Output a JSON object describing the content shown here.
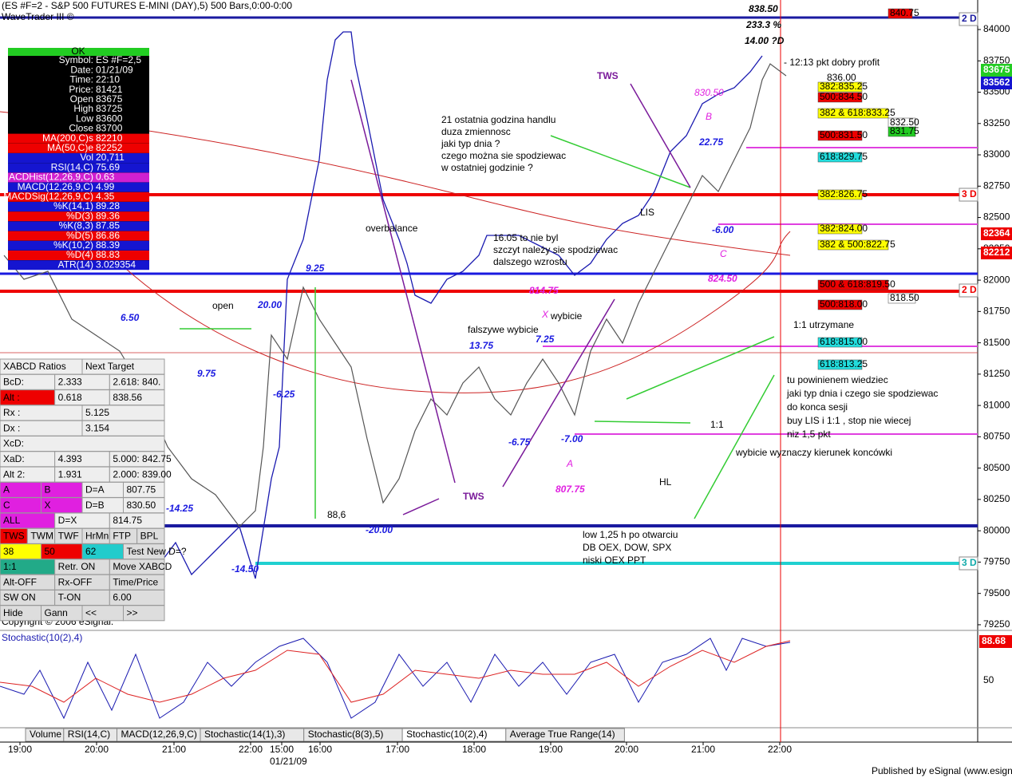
{
  "header": {
    "title": "(ES #F=2 - S&P 500 FUTURES E-MINI (DAY),5) 500 Bars,0:00-0:00",
    "subtitle": "WaveTrader III ©",
    "price_top": "838.50",
    "percent": "233.3 %",
    "target": "14.00 ?D"
  },
  "info_panel": {
    "status": "OK",
    "rows": [
      [
        "Symbol:",
        "ES #F=2,5"
      ],
      [
        "Date:",
        "01/21/09"
      ],
      [
        "Time:",
        "22:10"
      ],
      [
        "Price:",
        "81421"
      ],
      [
        "Open",
        "83675"
      ],
      [
        "High",
        "83725"
      ],
      [
        "Low",
        "83600"
      ],
      [
        "Close",
        "83700"
      ],
      [
        "MA(200,C)s",
        "82210"
      ],
      [
        "MA(50,C)e",
        "82252"
      ],
      [
        "Vol",
        "20,711"
      ],
      [
        "RSI(14,C)",
        "75.69"
      ],
      [
        "MACDHist(12,26,9,C)",
        "0.63"
      ],
      [
        "MACD(12,26,9,C)",
        "4.99"
      ],
      [
        "MACDSig(12,26,9,C)",
        "4.35"
      ],
      [
        "%K(14,1)",
        "89.28"
      ],
      [
        "%D(3)",
        "89.36"
      ],
      [
        "%K(8,3)",
        "87.85"
      ],
      [
        "%D(5)",
        "86.86"
      ],
      [
        "%K(10,2)",
        "88.39"
      ],
      [
        "%D(4)",
        "88.83"
      ],
      [
        "ATR(14)",
        "3.029354"
      ]
    ]
  },
  "xabcd_panel": {
    "rows": [
      [
        "XABCD Ratios",
        "Next Target"
      ],
      [
        "BcD:",
        "2.333",
        "2.618: 840."
      ],
      [
        "Alt :",
        "0.618",
        "838.56"
      ],
      [
        "Rx :",
        "5.125"
      ],
      [
        "Dx :",
        "3.154"
      ],
      [
        "XcD:"
      ],
      [
        "XaD:",
        "4.393",
        "5.000: 842.75"
      ],
      [
        "Alt 2:",
        "1.931",
        "2.000: 839.00"
      ],
      [
        "A",
        "B",
        "D=A",
        "807.75"
      ],
      [
        "C",
        "X",
        "D=B",
        "830.50"
      ],
      [
        "ALL",
        "D=X",
        "814.75"
      ],
      [
        "TWS",
        "TWM",
        "TWF",
        "HrMn",
        "FTP",
        "BPL"
      ],
      [
        "38",
        "50",
        "62",
        "Test New D=?"
      ],
      [
        "1:1",
        "Retr. ON",
        "Move XABCD"
      ],
      [
        "Alt-OFF",
        "Rx-OFF",
        "Time/Price"
      ],
      [
        "SW ON",
        "T-ON",
        "6.00"
      ],
      [
        "Hide",
        "Gann",
        "<<",
        ">>"
      ]
    ]
  },
  "price_axis": [
    84000,
    83750,
    83500,
    83250,
    83000,
    82750,
    82500,
    82250,
    82000,
    81750,
    81500,
    81250,
    81000,
    80750,
    80500,
    80250,
    80000,
    79750,
    79500,
    79250
  ],
  "levels": [
    "840.75",
    "382:835.25",
    "500:834.50",
    "382 & 618:833.25",
    "832.50",
    "831.75",
    "500:831.50",
    "618:829.75",
    "382:826.75",
    "382:824.00",
    "382 & 500:822.75",
    "500 & 618:819.50",
    "818.50",
    "500:818.00",
    "618:815.00",
    "618:813.25",
    "836.00"
  ],
  "right_tags": [
    "2 D",
    "3 D",
    "2 D",
    "3 D",
    "83675",
    "83562",
    "82364",
    "82212"
  ],
  "annotations": [
    "TWS",
    "830.50",
    "B",
    "22.75",
    "LIS",
    "-6.00",
    "C",
    "824.50",
    "- 12:13 pkt dobry profit",
    "overbalance",
    "9.25",
    "814.75",
    "open",
    "20.00",
    "X",
    "wybicie",
    "6.50",
    "falszywe wybicie",
    "7.25",
    "13.75",
    "1:1 utrzymane",
    "9.75",
    "-6.25",
    "1:1",
    "-6.75",
    "-7.00",
    "wybicie wyznaczy kierunek koncówki",
    "A",
    "HL",
    "807.75",
    "TWS",
    "-14.25",
    "88,6",
    "-20.00",
    "-14.50"
  ],
  "notes": [
    [
      "21 ostatnia godzina handlu",
      "duza zmiennosc",
      "jaki typ dnia ?",
      "czego można sie spodziewac",
      "w ostatniej godzinie ?"
    ],
    [
      "16.05 to nie byl",
      "szczyt należy sie spodziewac",
      "dalszego wzrostu"
    ],
    [
      "tu powinienem wiedziec",
      "jaki typ dnia i czego sie spodziewac",
      "do konca sesji",
      "buy LIS i 1:1 , stop nie wiecej",
      "niz 1,5 pkt"
    ],
    [
      "low 1,25 h po otwarciu",
      "DB OEX, DOW, SPX",
      "niski OEX PPT"
    ]
  ],
  "stochastic": {
    "title": "Stochastic(10(2),4)",
    "value": "88.68",
    "scale": "50"
  },
  "tabs": [
    "Volume",
    "RSI(14,C)",
    "MACD(12,26,9,C)",
    "Stochastic(14(1),3)",
    "Stochastic(8(3),5)",
    "Stochastic(10(2),4)",
    "Average True Range(14)"
  ],
  "time_axis": [
    "19:00",
    "20:00",
    "21:00",
    "22:00",
    "15:00",
    "16:00",
    "17:00",
    "18:00",
    "19:00",
    "20:00",
    "21:00",
    "22:00"
  ],
  "date": "01/21/09",
  "footer": {
    "copyright": "Copyright © 2006 eSignal.",
    "published": "Published by eSignal (www.esignal.com)"
  }
}
